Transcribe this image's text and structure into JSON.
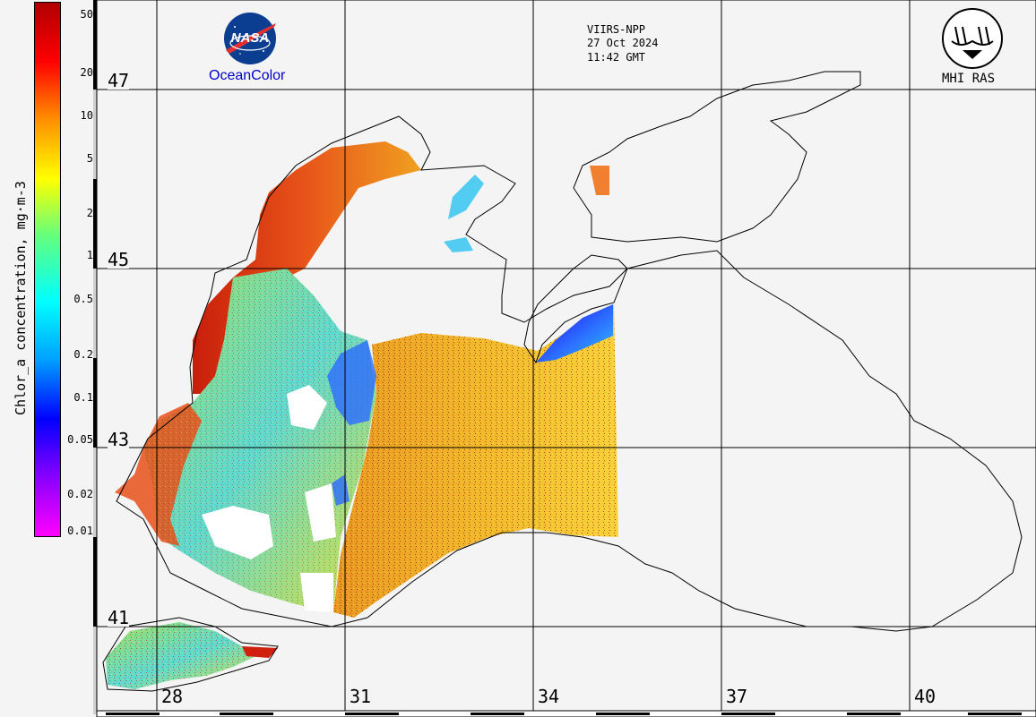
{
  "header": {
    "sensor": "VIIRS-NPP",
    "date": "27 Oct 2024",
    "time": "11:42 GMT"
  },
  "logos": {
    "nasa_text": "NASA",
    "oceancolor_text": "OceanColor",
    "mhi_text": "MHI RAS"
  },
  "colorbar": {
    "title": "Chlor_a concentration, mg·m-3",
    "ticks": [
      "50",
      "20",
      "10",
      "5",
      "2",
      "1",
      "0.5",
      "0.2",
      "0.1",
      "0.05",
      "0.02",
      "0.01"
    ],
    "scale": "log",
    "range": [
      0.01,
      50
    ],
    "colors": [
      "#ff00ff",
      "#8a00ff",
      "#0000ff",
      "#00a0ff",
      "#00ffff",
      "#60ff80",
      "#ffff00",
      "#ff9000",
      "#ff0000",
      "#b00000"
    ]
  },
  "latitudes": [
    "47",
    "45",
    "43",
    "41"
  ],
  "longitudes": [
    "28",
    "31",
    "34",
    "37",
    "40"
  ],
  "colors": {
    "background": "#f4f4f4",
    "grid": "#000000",
    "coastline": "#000000",
    "nasa_blue": "#0b3d91",
    "oceancolor_blue": "#0000cc"
  }
}
